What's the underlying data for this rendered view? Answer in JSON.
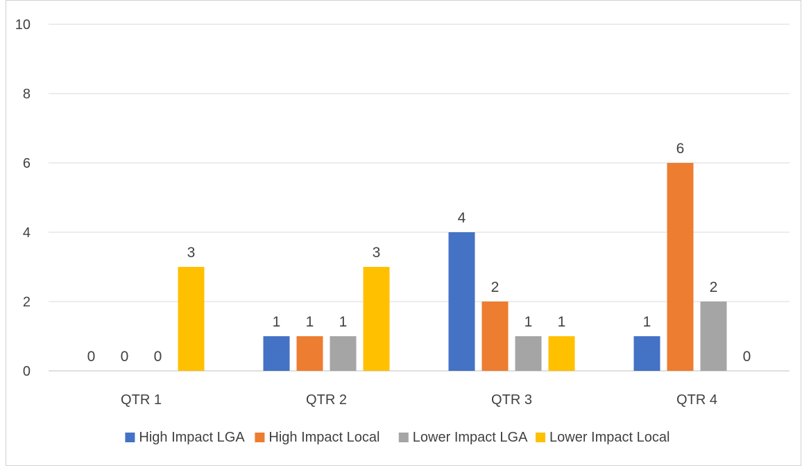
{
  "chart_data": {
    "type": "bar",
    "title": "",
    "xlabel": "",
    "ylabel": "",
    "ylim": [
      0,
      10
    ],
    "yticks": [
      "0",
      "2",
      "4",
      "6",
      "8",
      "10"
    ],
    "grid": true,
    "legend_position": "bottom",
    "categories": [
      "QTR 1",
      "QTR 2",
      "QTR 3",
      "QTR 4"
    ],
    "series": [
      {
        "name": "High Impact LGA",
        "color": "#4472C4",
        "values": [
          0,
          1,
          4,
          1
        ],
        "labels": [
          "0",
          "1",
          "4",
          "1"
        ]
      },
      {
        "name": "High Impact Local",
        "color": "#ED7D31",
        "values": [
          0,
          1,
          2,
          6
        ],
        "labels": [
          "0",
          "1",
          "2",
          "6"
        ]
      },
      {
        "name": "Lower Impact LGA",
        "color": "#A5A5A5",
        "values": [
          0,
          1,
          1,
          2
        ],
        "labels": [
          "0",
          "1",
          "1",
          "2"
        ]
      },
      {
        "name": "Lower Impact Local",
        "color": "#FFC000",
        "values": [
          3,
          3,
          1,
          0
        ],
        "labels": [
          "3",
          "3",
          "1",
          "0"
        ]
      }
    ]
  }
}
